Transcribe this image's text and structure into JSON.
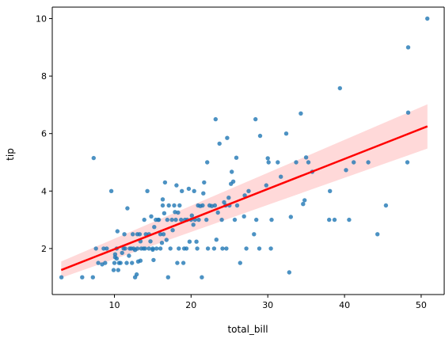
{
  "chart_data": {
    "type": "scatter",
    "title": "",
    "xlabel": "total_bill",
    "ylabel": "tip",
    "xlim": [
      1.9,
      53.0
    ],
    "ylim": [
      0.4,
      10.4
    ],
    "xticks": [
      "10",
      "20",
      "30",
      "40",
      "50"
    ],
    "yticks": [
      "2",
      "4",
      "6",
      "8",
      "10"
    ],
    "grid": false,
    "colors": {
      "points": "#1f77b4",
      "regression_line": "#ff0000",
      "confidence_band": "#ffcccc"
    },
    "regression": {
      "x": [
        3.07,
        50.81
      ],
      "y": [
        1.25,
        6.25
      ],
      "ci_lower": [
        0.98,
        5.48
      ],
      "ci_upper": [
        1.55,
        7.02
      ]
    },
    "points": [
      [
        3.1,
        1.0
      ],
      [
        5.8,
        1.0
      ],
      [
        7.2,
        1.0
      ],
      [
        7.3,
        5.15
      ],
      [
        7.6,
        2.0
      ],
      [
        7.9,
        1.5
      ],
      [
        8.4,
        1.45
      ],
      [
        8.8,
        1.5
      ],
      [
        8.6,
        2.0
      ],
      [
        9.0,
        2.0
      ],
      [
        9.6,
        4.0
      ],
      [
        9.9,
        1.25
      ],
      [
        10.0,
        1.5
      ],
      [
        10.1,
        1.7
      ],
      [
        10.3,
        1.65
      ],
      [
        10.4,
        2.6
      ],
      [
        10.1,
        1.8
      ],
      [
        10.3,
        2.0
      ],
      [
        10.5,
        1.25
      ],
      [
        10.6,
        1.5
      ],
      [
        10.8,
        1.5
      ],
      [
        11.0,
        1.85
      ],
      [
        11.2,
        2.0
      ],
      [
        11.3,
        2.5
      ],
      [
        11.4,
        2.0
      ],
      [
        11.6,
        1.5
      ],
      [
        11.7,
        3.4
      ],
      [
        11.9,
        1.75
      ],
      [
        12.0,
        2.0
      ],
      [
        12.2,
        2.0
      ],
      [
        12.3,
        1.5
      ],
      [
        12.4,
        2.5
      ],
      [
        12.5,
        2.0
      ],
      [
        12.7,
        1.0
      ],
      [
        12.7,
        1.95
      ],
      [
        12.9,
        1.1
      ],
      [
        13.0,
        2.0
      ],
      [
        13.0,
        2.5
      ],
      [
        13.1,
        1.55
      ],
      [
        13.3,
        2.5
      ],
      [
        13.4,
        2.25
      ],
      [
        13.4,
        1.58
      ],
      [
        13.5,
        2.0
      ],
      [
        13.8,
        2.0
      ],
      [
        13.9,
        3.0
      ],
      [
        14.0,
        2.0
      ],
      [
        14.1,
        2.5
      ],
      [
        14.3,
        4.0
      ],
      [
        14.5,
        2.0
      ],
      [
        14.5,
        2.5
      ],
      [
        14.7,
        2.25
      ],
      [
        14.8,
        3.12
      ],
      [
        15.0,
        1.96
      ],
      [
        15.0,
        2.0
      ],
      [
        15.1,
        1.6
      ],
      [
        15.2,
        2.75
      ],
      [
        15.4,
        3.0
      ],
      [
        15.5,
        2.0
      ],
      [
        15.7,
        3.0
      ],
      [
        15.8,
        3.0
      ],
      [
        16.0,
        2.0
      ],
      [
        16.0,
        2.5
      ],
      [
        16.2,
        2.2
      ],
      [
        16.3,
        3.5
      ],
      [
        16.3,
        3.71
      ],
      [
        16.4,
        2.5
      ],
      [
        16.5,
        3.23
      ],
      [
        16.6,
        4.3
      ],
      [
        16.8,
        2.3
      ],
      [
        16.9,
        3.0
      ],
      [
        17.0,
        1.0
      ],
      [
        17.1,
        3.5
      ],
      [
        17.3,
        2.0
      ],
      [
        17.5,
        3.0
      ],
      [
        17.6,
        2.64
      ],
      [
        17.8,
        3.5
      ],
      [
        17.9,
        3.27
      ],
      [
        18.0,
        3.0
      ],
      [
        18.1,
        4.2
      ],
      [
        18.2,
        1.5
      ],
      [
        18.3,
        3.25
      ],
      [
        18.4,
        2.0
      ],
      [
        18.5,
        3.5
      ],
      [
        18.7,
        3.0
      ],
      [
        18.8,
        4.0
      ],
      [
        19.0,
        1.5
      ],
      [
        19.1,
        2.0
      ],
      [
        19.2,
        3.0
      ],
      [
        19.4,
        2.0
      ],
      [
        19.5,
        3.0
      ],
      [
        19.7,
        4.08
      ],
      [
        19.8,
        2.24
      ],
      [
        20.0,
        3.0
      ],
      [
        20.1,
        3.15
      ],
      [
        20.3,
        2.83
      ],
      [
        20.4,
        4.0
      ],
      [
        20.5,
        3.0
      ],
      [
        20.7,
        2.24
      ],
      [
        20.8,
        2.0
      ],
      [
        20.9,
        3.5
      ],
      [
        21.0,
        3.0
      ],
      [
        21.2,
        3.48
      ],
      [
        21.4,
        1.0
      ],
      [
        21.5,
        3.5
      ],
      [
        21.6,
        3.92
      ],
      [
        21.7,
        4.3
      ],
      [
        22.0,
        3.0
      ],
      [
        22.1,
        5.0
      ],
      [
        22.2,
        2.0
      ],
      [
        22.4,
        3.5
      ],
      [
        22.7,
        3.48
      ],
      [
        23.0,
        2.0
      ],
      [
        23.1,
        3.5
      ],
      [
        23.2,
        6.5
      ],
      [
        23.3,
        2.31
      ],
      [
        23.5,
        3.25
      ],
      [
        23.7,
        5.65
      ],
      [
        24.0,
        3.0
      ],
      [
        24.1,
        2.0
      ],
      [
        24.3,
        3.61
      ],
      [
        24.5,
        3.5
      ],
      [
        24.6,
        2.0
      ],
      [
        24.7,
        5.85
      ],
      [
        24.9,
        3.77
      ],
      [
        25.0,
        3.5
      ],
      [
        25.2,
        4.25
      ],
      [
        25.3,
        4.67
      ],
      [
        25.5,
        4.33
      ],
      [
        25.7,
        3.0
      ],
      [
        25.9,
        5.16
      ],
      [
        26.0,
        3.5
      ],
      [
        26.4,
        1.5
      ],
      [
        26.9,
        3.12
      ],
      [
        27.0,
        3.85
      ],
      [
        27.2,
        2.0
      ],
      [
        27.5,
        4.0
      ],
      [
        28.2,
        2.5
      ],
      [
        28.4,
        6.5
      ],
      [
        28.5,
        3.0
      ],
      [
        28.9,
        2.0
      ],
      [
        29.0,
        5.92
      ],
      [
        29.8,
        4.2
      ],
      [
        30.0,
        5.14
      ],
      [
        30.1,
        5.0
      ],
      [
        30.4,
        2.0
      ],
      [
        30.5,
        3.0
      ],
      [
        31.3,
        5.0
      ],
      [
        31.7,
        4.5
      ],
      [
        32.4,
        6.0
      ],
      [
        32.8,
        1.17
      ],
      [
        33.0,
        3.1
      ],
      [
        33.7,
        5.0
      ],
      [
        34.3,
        6.7
      ],
      [
        34.6,
        3.55
      ],
      [
        34.8,
        3.68
      ],
      [
        35.0,
        5.17
      ],
      [
        35.3,
        5.0
      ],
      [
        35.8,
        4.67
      ],
      [
        38.0,
        3.0
      ],
      [
        38.1,
        4.0
      ],
      [
        38.7,
        3.0
      ],
      [
        39.4,
        7.58
      ],
      [
        40.2,
        4.73
      ],
      [
        40.6,
        3.0
      ],
      [
        41.2,
        5.0
      ],
      [
        43.1,
        5.0
      ],
      [
        44.3,
        2.5
      ],
      [
        45.4,
        3.5
      ],
      [
        48.2,
        5.0
      ],
      [
        48.3,
        6.73
      ],
      [
        48.3,
        9.0
      ],
      [
        50.8,
        10.0
      ]
    ]
  }
}
